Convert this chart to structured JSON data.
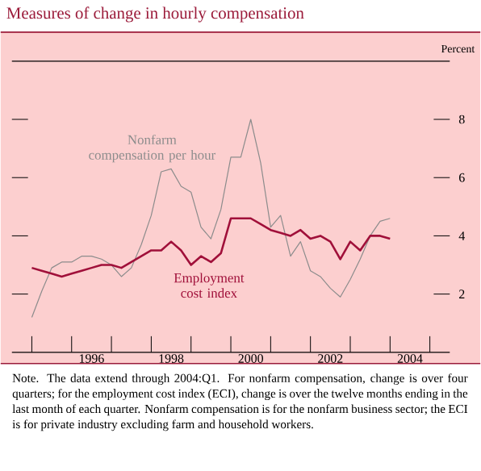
{
  "chart_data": {
    "type": "line",
    "title": "Measures of change in hourly compensation",
    "ylabel": "Percent",
    "x": [
      1995,
      1995.25,
      1995.5,
      1995.75,
      1996,
      1996.25,
      1996.5,
      1996.75,
      1997,
      1997.25,
      1997.5,
      1997.75,
      1998,
      1998.25,
      1998.5,
      1998.75,
      1999,
      1999.25,
      1999.5,
      1999.75,
      2000,
      2000.25,
      2000.5,
      2000.75,
      2001,
      2001.25,
      2001.5,
      2001.75,
      2002,
      2002.25,
      2002.5,
      2002.75,
      2003,
      2003.25,
      2003.5,
      2003.75,
      2004
    ],
    "series": [
      {
        "name": "Nonfarm compensation per hour",
        "color": "#8c8c8c",
        "values": [
          1.2,
          2.1,
          2.9,
          3.1,
          3.1,
          3.3,
          3.3,
          3.2,
          3.0,
          2.6,
          2.9,
          3.7,
          4.7,
          6.2,
          6.3,
          5.7,
          5.5,
          4.3,
          3.9,
          4.9,
          6.7,
          6.7,
          8.0,
          6.5,
          4.3,
          4.7,
          3.3,
          3.8,
          2.8,
          2.6,
          2.2,
          1.9,
          2.5,
          3.2,
          4.0,
          4.5,
          4.6
        ]
      },
      {
        "name": "Employment cost index",
        "color": "#a0103a",
        "values": [
          2.9,
          2.8,
          2.7,
          2.6,
          2.7,
          2.8,
          2.9,
          3.0,
          3.0,
          2.9,
          3.1,
          3.3,
          3.5,
          3.5,
          3.8,
          3.5,
          3.0,
          3.3,
          3.1,
          3.4,
          4.6,
          4.6,
          4.6,
          4.4,
          4.2,
          4.1,
          4.0,
          4.2,
          3.9,
          4.0,
          3.8,
          3.2,
          3.8,
          3.5,
          4.0,
          4.0,
          3.9
        ]
      }
    ],
    "xlim": [
      1994.5,
      2005.5
    ],
    "ylim": [
      0,
      10
    ],
    "xticks": [
      {
        "value": 1995,
        "label": null
      },
      {
        "value": 1996,
        "label": null
      },
      {
        "value": 1997,
        "label": null
      },
      {
        "value": 1998,
        "label": null
      },
      {
        "value": 1999,
        "label": null
      },
      {
        "value": 2000,
        "label": null
      },
      {
        "value": 2001,
        "label": null
      },
      {
        "value": 2002,
        "label": null
      },
      {
        "value": 2003,
        "label": null
      },
      {
        "value": 2004,
        "label": null
      },
      {
        "value": 2005,
        "label": null
      },
      {
        "value": 1996.5,
        "label": "1996"
      },
      {
        "value": 1998.5,
        "label": "1998"
      },
      {
        "value": 2000.5,
        "label": "2000"
      },
      {
        "value": 2002.5,
        "label": "2002"
      },
      {
        "value": 2004.5,
        "label": "2004"
      }
    ],
    "yticks": [
      2,
      4,
      6,
      8
    ],
    "annotations": [
      "Note. The data extend through 2004:Q1. For nonfarm compensation, change is over four quarters; for the employment cost index (ECI), change is over the twelve months ending in the last month of each quarter. Nonfarm compensation is for the nonfarm business sector; the ECI is for private industry excluding farm and household workers."
    ]
  }
}
